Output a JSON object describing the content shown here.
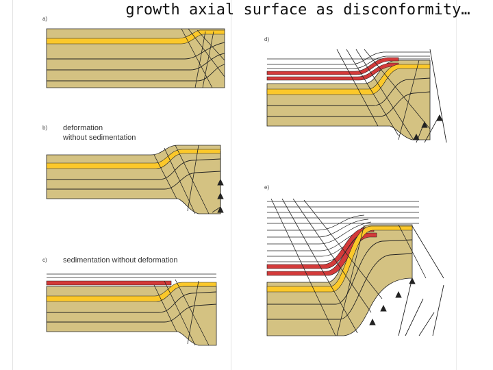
{
  "title": "growth axial surface as disconformity…",
  "panels": {
    "a": {
      "label": "a)"
    },
    "b": {
      "label": "b)",
      "caption_line1": "deformation",
      "caption_line2": "without sedimentation"
    },
    "c": {
      "label": "c)",
      "caption": "sedimentation without deformation"
    },
    "d": {
      "label": "d)"
    },
    "e": {
      "label": "e)"
    }
  },
  "colors": {
    "tan": "#d4c282",
    "tan_dark": "#c2ad6a",
    "yellow": "#fbc82a",
    "red": "#d33a3a",
    "line": "#222222"
  }
}
